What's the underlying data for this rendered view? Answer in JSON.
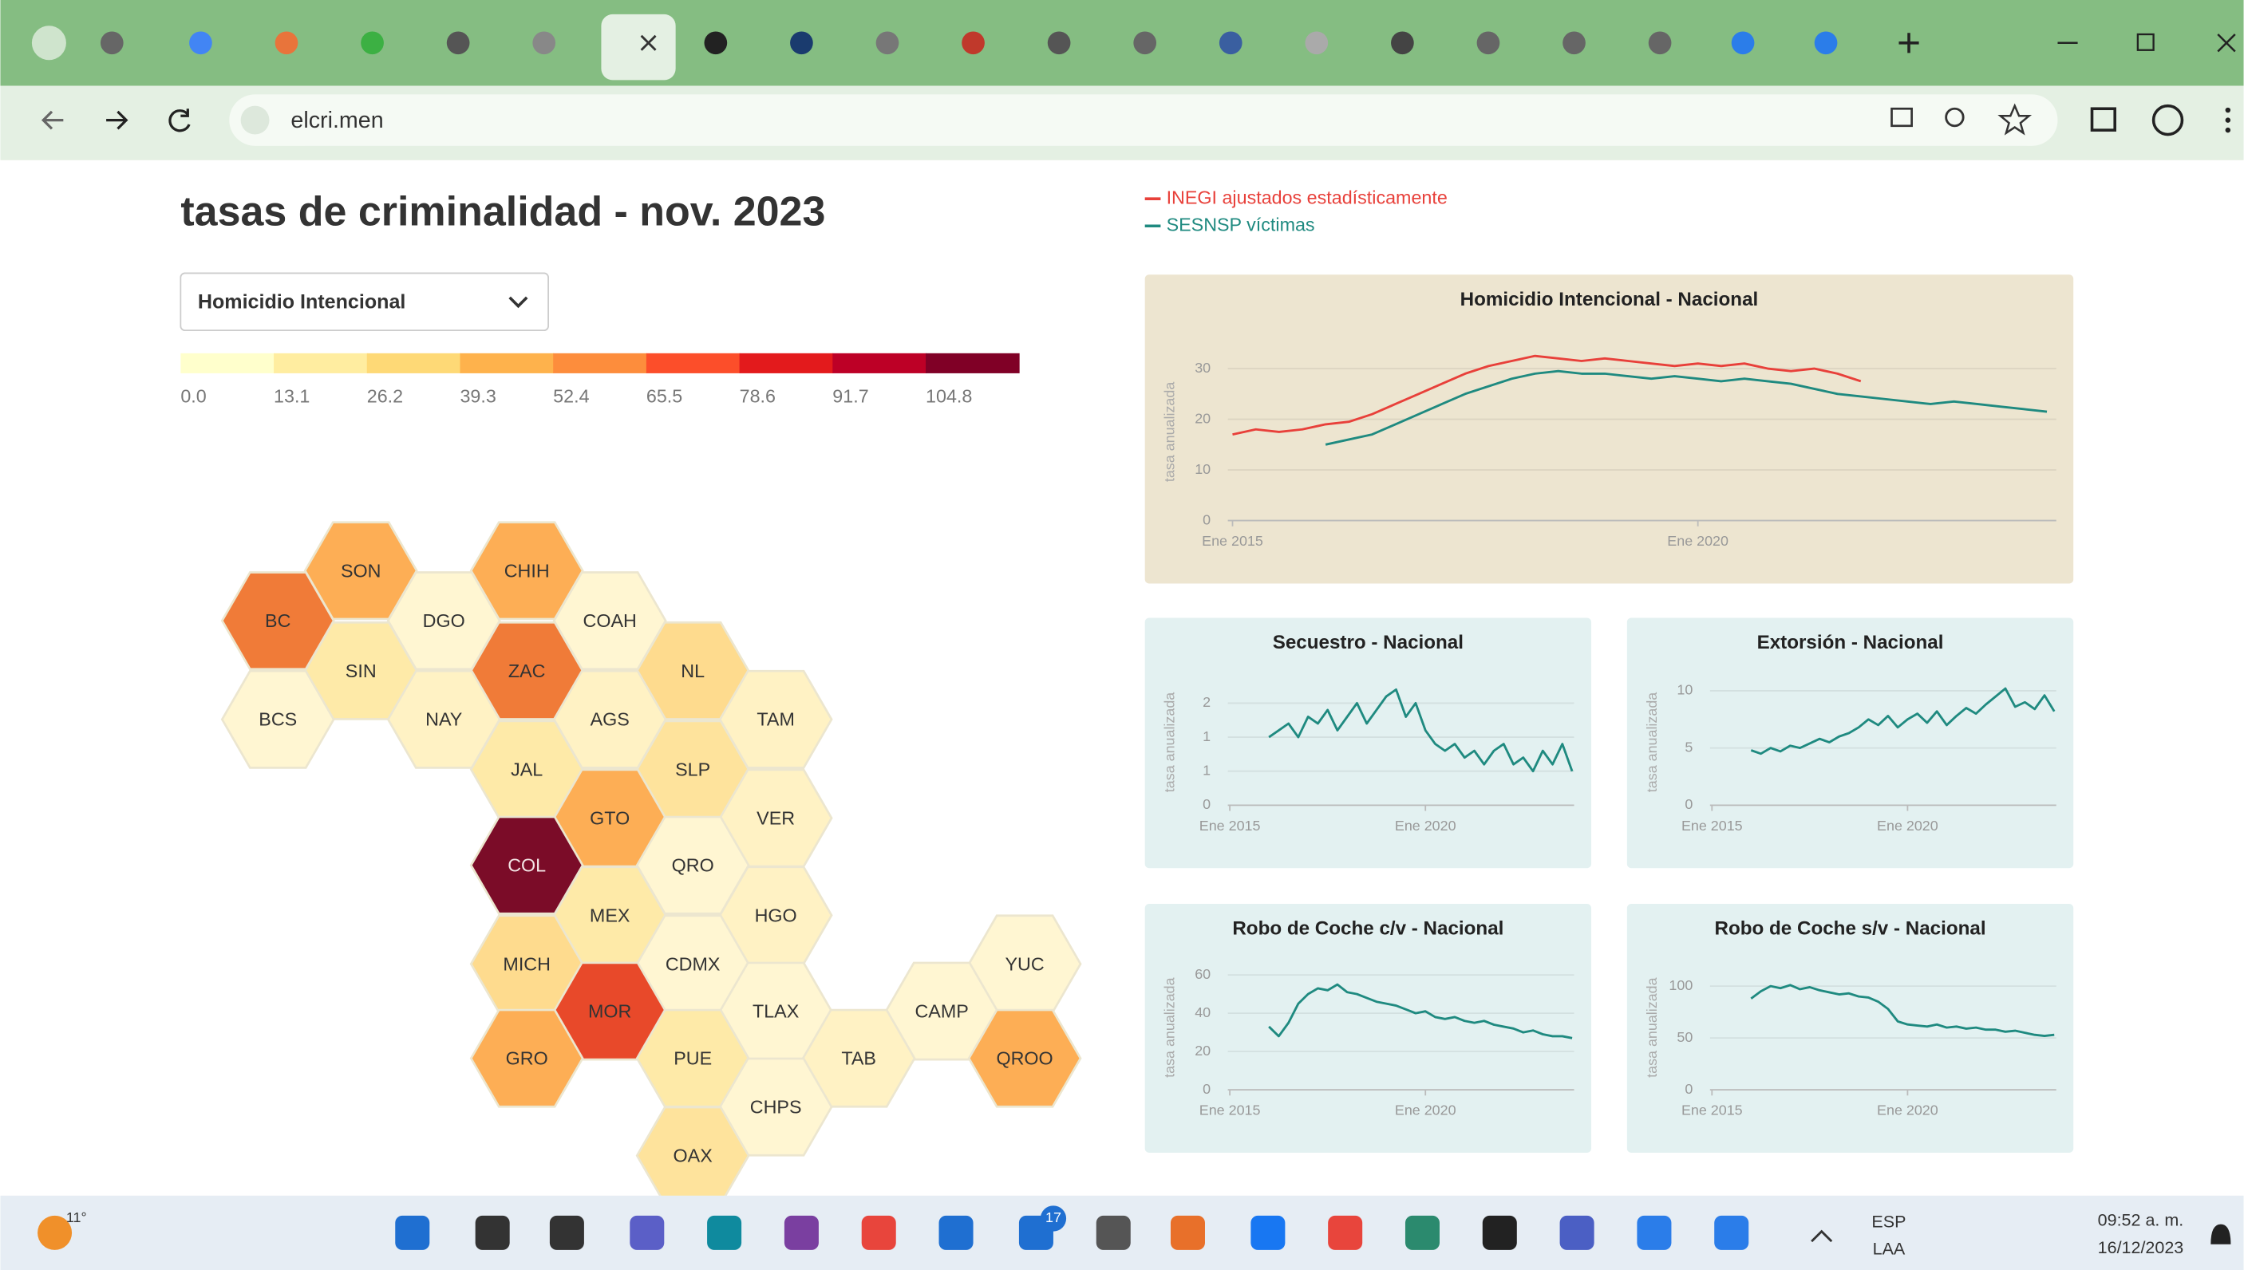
{
  "browser": {
    "url": "elcri.men"
  },
  "page": {
    "title": "tasas de criminalidad - nov. 2023",
    "dropdown": "Homicidio Intencional",
    "colorbar": {
      "colors": [
        "#ffffcc",
        "#ffeda0",
        "#fed976",
        "#feb24c",
        "#fd8d3c",
        "#fc4e2a",
        "#e31a1c",
        "#bd0026",
        "#800026"
      ],
      "ticks": [
        {
          "value": 0,
          "label": "0.0"
        },
        13.1,
        26.2,
        39.3,
        52.4,
        65.5,
        78.6,
        91.7,
        104.8
      ]
    },
    "map": {
      "states": [
        {
          "label": "SON",
          "color": "#fdae55"
        },
        {
          "label": "CHIH",
          "color": "#fdae55"
        },
        {
          "label": "BC",
          "color": "#f07b38"
        },
        {
          "label": "DGO",
          "color": "#fff6d2"
        },
        {
          "label": "COAH",
          "color": "#fff6d2"
        },
        {
          "label": "SIN",
          "color": "#feeaa8"
        },
        {
          "label": "ZAC",
          "color": "#f07b38"
        },
        {
          "label": "NL",
          "color": "#fedb8e"
        },
        {
          "label": "BCS",
          "color": "#fff6d2"
        },
        {
          "label": "NAY",
          "color": "#fff2c4"
        },
        {
          "label": "AGS",
          "color": "#fff2c4"
        },
        {
          "label": "TAM",
          "color": "#fff2c4"
        },
        {
          "label": "JAL",
          "color": "#feeaa8"
        },
        {
          "label": "SLP",
          "color": "#fee39c"
        },
        {
          "label": "GTO",
          "color": "#fdae55"
        },
        {
          "label": "VER",
          "color": "#fff2c4"
        },
        {
          "label": "COL",
          "color": "#7b0c28"
        },
        {
          "label": "QRO",
          "color": "#fff6d2"
        },
        {
          "label": "MEX",
          "color": "#feeaa8"
        },
        {
          "label": "HGO",
          "color": "#fff2c4"
        },
        {
          "label": "MICH",
          "color": "#fedb8e"
        },
        {
          "label": "CDMX",
          "color": "#fff6d2"
        },
        {
          "label": "YUC",
          "color": "#fff6d2"
        },
        {
          "label": "MOR",
          "color": "#e8492a"
        },
        {
          "label": "TLAX",
          "color": "#fff6d2"
        },
        {
          "label": "CAMP",
          "color": "#fff6d2"
        },
        {
          "label": "GRO",
          "color": "#fdae55"
        },
        {
          "label": "PUE",
          "color": "#feeaa8"
        },
        {
          "label": "TAB",
          "color": "#fff2c4"
        },
        {
          "label": "QROO",
          "color": "#fdae55"
        },
        {
          "label": "CHPS",
          "color": "#fff6d2"
        },
        {
          "label": "OAX",
          "color": "#fee39c"
        }
      ]
    }
  },
  "chart_data": [
    {
      "type": "line",
      "title": "Homicidio Intencional - Nacional",
      "ylabel": "tasa anualizada",
      "background": "#ede5d0",
      "x": [
        2015,
        2015.25,
        2015.5,
        2015.75,
        2016,
        2016.25,
        2016.5,
        2016.75,
        2017,
        2017.25,
        2017.5,
        2017.75,
        2018,
        2018.25,
        2018.5,
        2018.75,
        2019,
        2019.25,
        2019.5,
        2019.75,
        2020,
        2020.25,
        2020.5,
        2020.75,
        2021,
        2021.25,
        2021.5,
        2021.75,
        2022,
        2022.25,
        2022.5,
        2022.75,
        2023,
        2023.25,
        2023.5,
        2023.75
      ],
      "xlim": [
        2014.95,
        2023.85
      ],
      "xticks": [
        {
          "value": 2015,
          "label": "Ene 2015"
        },
        {
          "value": 2020,
          "label": "Ene 2020"
        }
      ],
      "ylim": [
        0,
        35
      ],
      "yticks": [
        0,
        10,
        20,
        30
      ],
      "series": [
        {
          "name": "INEGI ajustados estadísticamente",
          "color": "#e8403a",
          "values": [
            17,
            18,
            17.5,
            18,
            19,
            19.5,
            21,
            23,
            25,
            27,
            29,
            30.5,
            31.5,
            32.5,
            32,
            31.5,
            32,
            31.5,
            31,
            30.5,
            31,
            30.5,
            31,
            30,
            29.5,
            30,
            29,
            27.5,
            null,
            null,
            null,
            null,
            null,
            null,
            null,
            null
          ]
        },
        {
          "name": "SESNSP víctimas",
          "color": "#1f8a80",
          "values": [
            null,
            null,
            null,
            null,
            15,
            16,
            17,
            19,
            21,
            23,
            25,
            26.5,
            28,
            29,
            29.5,
            29,
            29,
            28.5,
            28,
            28.5,
            28,
            27.5,
            28,
            27.5,
            27,
            26,
            25,
            24.5,
            24,
            23.5,
            23,
            23.5,
            23,
            22.5,
            22,
            21.5
          ]
        }
      ]
    },
    {
      "type": "line",
      "title": "Secuestro - Nacional",
      "ylabel": "tasa anualizada",
      "background": "#e3f1f1",
      "color": "#1f8a80",
      "x": [
        2016,
        2016.25,
        2016.5,
        2016.75,
        2017,
        2017.25,
        2017.5,
        2017.75,
        2018,
        2018.25,
        2018.5,
        2018.75,
        2019,
        2019.25,
        2019.5,
        2019.75,
        2020,
        2020.25,
        2020.5,
        2020.75,
        2021,
        2021.25,
        2021.5,
        2021.75,
        2022,
        2022.25,
        2022.5,
        2022.75,
        2023,
        2023.25,
        2023.5,
        2023.75
      ],
      "xlim": [
        2014.95,
        2023.8
      ],
      "xticks": [
        {
          "value": 2015,
          "label": "Ene 2015"
        },
        {
          "value": 2020,
          "label": "Ene 2020"
        }
      ],
      "ylim": [
        0,
        1.85
      ],
      "yticks": [
        0,
        {
          "value": 0.5,
          "label": "1"
        },
        1,
        {
          "value": 1.5,
          "label": "2"
        }
      ],
      "values": [
        1.0,
        1.1,
        1.2,
        1.0,
        1.3,
        1.2,
        1.4,
        1.1,
        1.3,
        1.5,
        1.2,
        1.4,
        1.6,
        1.7,
        1.3,
        1.5,
        1.1,
        0.9,
        0.8,
        0.9,
        0.7,
        0.8,
        0.6,
        0.8,
        0.9,
        0.6,
        0.7,
        0.5,
        0.8,
        0.6,
        0.9,
        0.5
      ]
    },
    {
      "type": "line",
      "title": "Extorsión - Nacional",
      "ylabel": "tasa anualizada",
      "background": "#e3f1f1",
      "color": "#1f8a80",
      "x": [
        2016,
        2016.25,
        2016.5,
        2016.75,
        2017,
        2017.25,
        2017.5,
        2017.75,
        2018,
        2018.25,
        2018.5,
        2018.75,
        2019,
        2019.25,
        2019.5,
        2019.75,
        2020,
        2020.25,
        2020.5,
        2020.75,
        2021,
        2021.25,
        2021.5,
        2021.75,
        2022,
        2022.25,
        2022.5,
        2022.75,
        2023,
        2023.25,
        2023.5,
        2023.75
      ],
      "xlim": [
        2014.95,
        2023.8
      ],
      "xticks": [
        {
          "value": 2015,
          "label": "Ene 2015"
        },
        {
          "value": 2020,
          "label": "Ene 2020"
        }
      ],
      "ylim": [
        0,
        11
      ],
      "yticks": [
        0,
        5,
        10
      ],
      "values": [
        4.8,
        4.5,
        5.0,
        4.7,
        5.2,
        5.0,
        5.4,
        5.8,
        5.5,
        6.0,
        6.3,
        6.8,
        7.5,
        7.0,
        7.8,
        6.8,
        7.5,
        8.0,
        7.2,
        8.2,
        7.0,
        7.8,
        8.5,
        8.0,
        8.8,
        9.5,
        10.2,
        8.6,
        9.0,
        8.4,
        9.6,
        8.2
      ]
    },
    {
      "type": "line",
      "title": "Robo de Coche c/v - Nacional",
      "ylabel": "tasa anualizada",
      "background": "#e3f1f1",
      "color": "#1f8a80",
      "x": [
        2016,
        2016.25,
        2016.5,
        2016.75,
        2017,
        2017.25,
        2017.5,
        2017.75,
        2018,
        2018.25,
        2018.5,
        2018.75,
        2019,
        2019.25,
        2019.5,
        2019.75,
        2020,
        2020.25,
        2020.5,
        2020.75,
        2021,
        2021.25,
        2021.5,
        2021.75,
        2022,
        2022.25,
        2022.5,
        2022.75,
        2023,
        2023.25,
        2023.5,
        2023.75
      ],
      "xlim": [
        2014.95,
        2023.8
      ],
      "xticks": [
        {
          "value": 2015,
          "label": "Ene 2015"
        },
        {
          "value": 2020,
          "label": "Ene 2020"
        }
      ],
      "ylim": [
        0,
        65
      ],
      "yticks": [
        0,
        20,
        40,
        60
      ],
      "values": [
        33,
        28,
        35,
        45,
        50,
        53,
        52,
        55,
        51,
        50,
        48,
        46,
        45,
        44,
        42,
        40,
        41,
        38,
        37,
        38,
        36,
        35,
        36,
        34,
        33,
        32,
        30,
        31,
        29,
        28,
        28,
        27
      ]
    },
    {
      "type": "line",
      "title": "Robo de Coche s/v - Nacional",
      "ylabel": "tasa anualizada",
      "background": "#e3f1f1",
      "color": "#1f8a80",
      "x": [
        2016,
        2016.25,
        2016.5,
        2016.75,
        2017,
        2017.25,
        2017.5,
        2017.75,
        2018,
        2018.25,
        2018.5,
        2018.75,
        2019,
        2019.25,
        2019.5,
        2019.75,
        2020,
        2020.25,
        2020.5,
        2020.75,
        2021,
        2021.25,
        2021.5,
        2021.75,
        2022,
        2022.25,
        2022.5,
        2022.75,
        2023,
        2023.25,
        2023.5,
        2023.75
      ],
      "xlim": [
        2014.95,
        2023.8
      ],
      "xticks": [
        {
          "value": 2015,
          "label": "Ene 2015"
        },
        {
          "value": 2020,
          "label": "Ene 2020"
        }
      ],
      "ylim": [
        0,
        120
      ],
      "yticks": [
        0,
        50,
        100
      ],
      "values": [
        88,
        95,
        100,
        98,
        101,
        97,
        99,
        96,
        94,
        92,
        93,
        90,
        89,
        85,
        78,
        66,
        63,
        62,
        61,
        63,
        60,
        61,
        59,
        60,
        58,
        58,
        56,
        57,
        55,
        53,
        52,
        53
      ]
    }
  ],
  "taskbar": {
    "weather": "11°",
    "badge": "17",
    "language": "ESP",
    "layout": "LAA",
    "time": "09:52 a. m.",
    "date": "16/12/2023"
  }
}
